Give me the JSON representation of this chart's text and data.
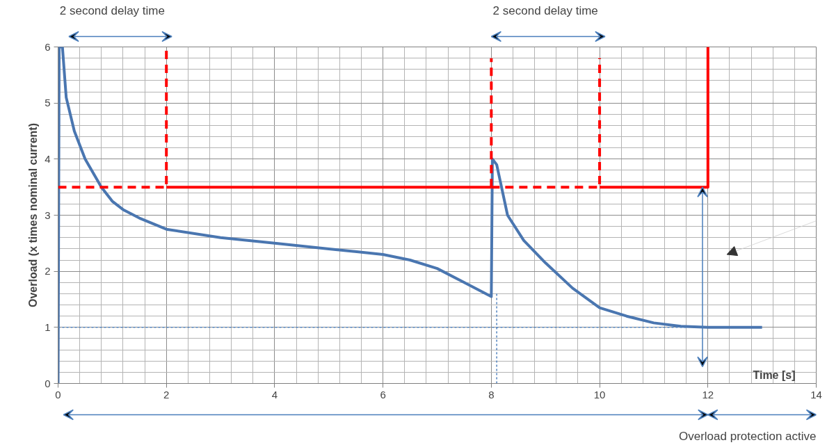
{
  "chart_data": {
    "type": "line",
    "xlabel": "Time [s]",
    "ylabel": "Overload (x times nominal current)",
    "xlim": [
      0,
      14
    ],
    "ylim": [
      0,
      6
    ],
    "xticks": [
      0,
      2,
      4,
      6,
      8,
      10,
      12,
      14
    ],
    "yticks": [
      0,
      1,
      2,
      3,
      4,
      5,
      6
    ],
    "grid": true,
    "marker": "none",
    "series": [
      {
        "color": "#4a76b0",
        "line_style": "solid",
        "x": [
          0,
          0.02,
          0.08,
          0.15,
          0.3,
          0.5,
          0.8,
          1,
          1.2,
          1.5,
          2,
          3,
          4,
          5,
          6,
          6.5,
          7,
          7.5,
          8,
          8.02,
          8.1,
          8.3,
          8.6,
          9,
          9.5,
          10,
          10.5,
          11,
          11.5,
          12,
          13
        ],
        "values": [
          0,
          6,
          6,
          5.1,
          4.5,
          4.0,
          3.5,
          3.25,
          3.1,
          2.95,
          2.75,
          2.6,
          2.5,
          2.4,
          2.3,
          2.2,
          2.05,
          1.8,
          1.55,
          4.0,
          3.9,
          3.0,
          2.55,
          2.15,
          1.7,
          1.35,
          1.2,
          1.08,
          1.02,
          1.0,
          1.0
        ]
      },
      {
        "color": "#ff0000",
        "line_style": "dashed",
        "x": [
          0,
          2,
          2
        ],
        "values": [
          3.5,
          3.5,
          6
        ]
      },
      {
        "color": "#ff0000",
        "line_style": "solid",
        "x": [
          2,
          8
        ],
        "values": [
          3.5,
          3.5
        ]
      },
      {
        "color": "#ff0000",
        "line_style": "dashed",
        "x": [
          8,
          8
        ],
        "values": [
          3.5,
          5.8
        ]
      },
      {
        "color": "#ff0000",
        "line_style": "dashed",
        "x": [
          8,
          10,
          10
        ],
        "values": [
          3.5,
          3.5,
          5.8
        ]
      },
      {
        "color": "#ff0000",
        "line_style": "solid",
        "x": [
          10,
          12,
          12
        ],
        "values": [
          3.5,
          3.5,
          6
        ]
      },
      {
        "color": "#4f81bd",
        "line_style": "dotted",
        "x": [
          0,
          11.6
        ],
        "values": [
          1,
          1
        ]
      },
      {
        "color": "#4f81bd",
        "line_style": "dotted",
        "x": [
          8.1,
          8.1
        ],
        "values": [
          0,
          1.6
        ]
      }
    ],
    "annotations": [
      "2 second delay time",
      "2 second delay time",
      "Overload protection active"
    ]
  }
}
